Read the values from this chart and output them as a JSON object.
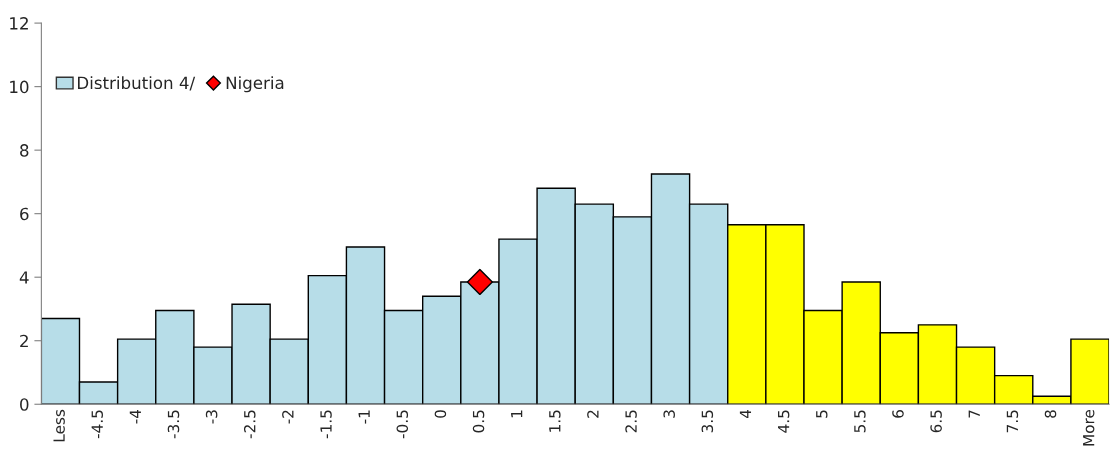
{
  "chart_data": {
    "type": "bar",
    "categories": [
      "Less",
      "-4.5",
      "-4",
      "-3.5",
      "-3",
      "-2.5",
      "-2",
      "-1.5",
      "-1",
      "-0.5",
      "0",
      "0.5",
      "1",
      "1.5",
      "2",
      "2.5",
      "3",
      "3.5",
      "4",
      "4.5",
      "5",
      "5.5",
      "6",
      "6.5",
      "7",
      "7.5",
      "8",
      "More"
    ],
    "series": [
      {
        "name": "Distribution 4/",
        "color": "#b7dde8",
        "colors": [
          "#b7dde8",
          "#b7dde8",
          "#b7dde8",
          "#b7dde8",
          "#b7dde8",
          "#b7dde8",
          "#b7dde8",
          "#b7dde8",
          "#b7dde8",
          "#b7dde8",
          "#b7dde8",
          "#b7dde8",
          "#b7dde8",
          "#b7dde8",
          "#b7dde8",
          "#b7dde8",
          "#b7dde8",
          "#b7dde8",
          "#ffff00",
          "#ffff00",
          "#ffff00",
          "#ffff00",
          "#ffff00",
          "#ffff00",
          "#ffff00",
          "#ffff00",
          "#ffff00",
          "#ffff00"
        ],
        "values": [
          2.7,
          0.7,
          2.05,
          2.95,
          1.8,
          3.15,
          2.05,
          4.05,
          4.95,
          2.95,
          3.4,
          3.85,
          5.2,
          6.8,
          6.3,
          5.9,
          7.25,
          6.3,
          5.65,
          5.65,
          2.95,
          3.85,
          2.25,
          2.5,
          1.8,
          0.9,
          0.25,
          2.05
        ]
      },
      {
        "name": "Nigeria",
        "type": "scatter",
        "color": "#ff0000",
        "marker": "diamond",
        "x": [
          "0.5"
        ],
        "values": [
          3.85
        ]
      }
    ],
    "ylim": [
      0,
      12
    ],
    "yticks": [
      0,
      2,
      4,
      6,
      8,
      10,
      12
    ],
    "grid": false,
    "legend": "top left"
  }
}
